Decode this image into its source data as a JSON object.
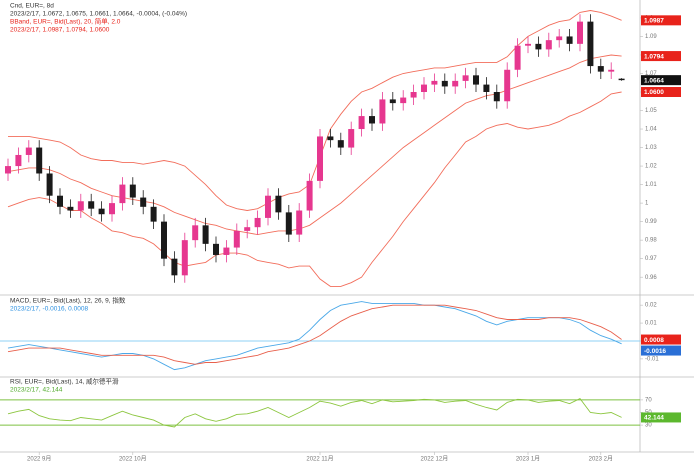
{
  "chart_data": [
    {
      "type": "candlestick",
      "title": "Cnd, EUR=, 8d",
      "subtitle": "2023/2/17, 1.0672, 1.0675, 1.0661, 1.0664, -0.0004, (-0.04%)",
      "up_color": "#e6378f",
      "down_color": "#1a1a1a",
      "open": [
        1.016,
        1.02,
        1.026,
        1.03,
        1.016,
        1.004,
        0.998,
        0.996,
        1.001,
        0.997,
        0.994,
        1.0,
        1.01,
        1.003,
        0.998,
        0.99,
        0.97,
        0.961,
        0.98,
        0.988,
        0.978,
        0.972,
        0.976,
        0.985,
        0.987,
        0.992,
        1.004,
        0.995,
        0.983,
        0.996,
        1.012,
        1.036,
        1.034,
        1.03,
        1.04,
        1.047,
        1.043,
        1.056,
        1.054,
        1.057,
        1.06,
        1.064,
        1.066,
        1.063,
        1.066,
        1.069,
        1.064,
        1.06,
        1.055,
        1.072,
        1.085,
        1.086,
        1.083,
        1.088,
        1.09,
        1.086,
        1.098,
        1.074,
        1.071,
        1.0672
      ],
      "high": [
        1.024,
        1.03,
        1.034,
        1.034,
        1.02,
        1.008,
        1.002,
        1.005,
        1.005,
        1.001,
        1.004,
        1.014,
        1.014,
        1.007,
        1.002,
        0.994,
        0.974,
        0.984,
        0.992,
        0.992,
        0.982,
        0.98,
        0.989,
        0.991,
        0.996,
        1.008,
        1.008,
        0.999,
        1.0,
        1.016,
        1.04,
        1.04,
        1.038,
        1.044,
        1.051,
        1.051,
        1.06,
        1.06,
        1.061,
        1.064,
        1.068,
        1.07,
        1.07,
        1.07,
        1.073,
        1.073,
        1.068,
        1.064,
        1.076,
        1.089,
        1.09,
        1.09,
        1.092,
        1.094,
        1.094,
        1.102,
        1.102,
        1.078,
        1.076,
        1.0675
      ],
      "low": [
        1.012,
        1.016,
        1.022,
        1.012,
        1.0,
        0.994,
        0.992,
        0.992,
        0.993,
        0.99,
        0.99,
        0.996,
        0.999,
        0.994,
        0.986,
        0.966,
        0.957,
        0.957,
        0.976,
        0.974,
        0.968,
        0.968,
        0.972,
        0.981,
        0.983,
        0.988,
        0.991,
        0.979,
        0.979,
        0.992,
        1.008,
        1.03,
        1.026,
        1.026,
        1.036,
        1.039,
        1.039,
        1.05,
        1.05,
        1.053,
        1.056,
        1.06,
        1.059,
        1.059,
        1.062,
        1.06,
        1.056,
        1.051,
        1.051,
        1.068,
        1.081,
        1.079,
        1.079,
        1.084,
        1.082,
        1.082,
        1.07,
        1.067,
        1.067,
        1.0661
      ],
      "close": [
        1.02,
        1.026,
        1.03,
        1.016,
        1.004,
        0.998,
        0.996,
        1.001,
        0.997,
        0.994,
        1.0,
        1.01,
        1.003,
        0.998,
        0.99,
        0.97,
        0.961,
        0.98,
        0.988,
        0.978,
        0.972,
        0.976,
        0.985,
        0.987,
        0.992,
        1.004,
        0.995,
        0.983,
        0.996,
        1.012,
        1.036,
        1.034,
        1.03,
        1.04,
        1.047,
        1.043,
        1.056,
        1.054,
        1.057,
        1.06,
        1.064,
        1.066,
        1.063,
        1.066,
        1.069,
        1.064,
        1.06,
        1.055,
        1.072,
        1.085,
        1.086,
        1.083,
        1.088,
        1.09,
        1.086,
        1.098,
        1.074,
        1.071,
        1.072,
        1.0664
      ],
      "overlay": {
        "name": "BBand, EUR=, Bid(Last), 20, 简单, 2.0",
        "readout": "2023/2/17, 1.0987, 1.0794, 1.0600",
        "color": "#f26d5b",
        "upper": [
          1.036,
          1.036,
          1.036,
          1.035,
          1.034,
          1.033,
          1.03,
          1.026,
          1.024,
          1.023,
          1.023,
          1.022,
          1.022,
          1.021,
          1.022,
          1.023,
          1.022,
          1.02,
          1.015,
          1.01,
          1.004,
          0.999,
          0.997,
          0.996,
          0.997,
          1.0,
          1.003,
          1.005,
          1.006,
          1.01,
          1.025,
          1.04,
          1.048,
          1.055,
          1.06,
          1.062,
          1.065,
          1.068,
          1.07,
          1.071,
          1.072,
          1.073,
          1.073,
          1.074,
          1.075,
          1.076,
          1.076,
          1.076,
          1.079,
          1.085,
          1.09,
          1.093,
          1.096,
          1.098,
          1.099,
          1.103,
          1.104,
          1.103,
          1.101,
          1.0987
        ],
        "middle": [
          1.017,
          1.018,
          1.019,
          1.019,
          1.018,
          1.016,
          1.013,
          1.011,
          1.008,
          1.006,
          1.004,
          1.003,
          1.002,
          1.001,
          1.0,
          0.998,
          0.995,
          0.993,
          0.991,
          0.989,
          0.988,
          0.986,
          0.985,
          0.984,
          0.983,
          0.984,
          0.985,
          0.985,
          0.986,
          0.988,
          0.992,
          0.996,
          1.0,
          1.005,
          1.01,
          1.015,
          1.02,
          1.025,
          1.03,
          1.034,
          1.038,
          1.042,
          1.046,
          1.05,
          1.054,
          1.056,
          1.058,
          1.059,
          1.061,
          1.063,
          1.065,
          1.067,
          1.069,
          1.071,
          1.073,
          1.076,
          1.078,
          1.079,
          1.08,
          1.0794
        ],
        "lower": [
          0.998,
          1.0,
          1.002,
          1.003,
          1.002,
          0.999,
          0.996,
          0.996,
          0.992,
          0.989,
          0.985,
          0.984,
          0.982,
          0.981,
          0.978,
          0.973,
          0.968,
          0.966,
          0.967,
          0.968,
          0.972,
          0.973,
          0.973,
          0.972,
          0.969,
          0.968,
          0.967,
          0.965,
          0.966,
          0.966,
          0.959,
          0.955,
          0.955,
          0.957,
          0.96,
          0.968,
          0.975,
          0.982,
          0.99,
          0.997,
          1.004,
          1.011,
          1.019,
          1.026,
          1.033,
          1.036,
          1.04,
          1.042,
          1.043,
          1.041,
          1.04,
          1.041,
          1.042,
          1.044,
          1.047,
          1.049,
          1.052,
          1.055,
          1.059,
          1.06
        ]
      },
      "ylim": [
        0.952,
        1.1086
      ],
      "yticks": [
        0.96,
        0.97,
        0.98,
        0.99,
        1,
        1.01,
        1.02,
        1.03,
        1.04,
        1.05,
        1.06,
        1.07,
        1.08,
        1.09,
        1.1
      ],
      "xticks": [
        {
          "value": 3,
          "label": "2022 9月"
        },
        {
          "value": 12,
          "label": "2022 10月"
        },
        {
          "value": 30,
          "label": "2022 11月"
        },
        {
          "value": 41,
          "label": "2022 12月"
        },
        {
          "value": 50,
          "label": "2023 1月"
        },
        {
          "value": 57,
          "label": "2023 2月"
        }
      ],
      "tags": [
        {
          "value": 1.0987,
          "color": "#e8231b"
        },
        {
          "value": 1.0794,
          "color": "#e8231b"
        },
        {
          "value": 1.0664,
          "color": "#111111"
        },
        {
          "value": 1.06,
          "label": "1.0600",
          "color": "#e8231b"
        }
      ]
    },
    {
      "type": "line",
      "title": "MACD, EUR=, Bid(Last), 12, 26, 9, 指数",
      "subtitle": "2023/2/17, -0.0016, 0.0008",
      "series": [
        {
          "color": "#4aa8e8",
          "values": [
            -0.004,
            -0.003,
            -0.002,
            -0.003,
            -0.004,
            -0.005,
            -0.006,
            -0.007,
            -0.008,
            -0.009,
            -0.008,
            -0.007,
            -0.007,
            -0.008,
            -0.01,
            -0.013,
            -0.016,
            -0.015,
            -0.013,
            -0.011,
            -0.01,
            -0.009,
            -0.008,
            -0.006,
            -0.004,
            -0.003,
            -0.002,
            -0.001,
            0.001,
            0.006,
            0.012,
            0.017,
            0.02,
            0.021,
            0.022,
            0.021,
            0.021,
            0.021,
            0.021,
            0.021,
            0.02,
            0.02,
            0.019,
            0.018,
            0.016,
            0.014,
            0.011,
            0.009,
            0.011,
            0.012,
            0.013,
            0.013,
            0.013,
            0.013,
            0.012,
            0.01,
            0.006,
            0.003,
            0.001,
            -0.0016
          ]
        },
        {
          "color": "#e8604c",
          "values": [
            -0.006,
            -0.005,
            -0.004,
            -0.004,
            -0.004,
            -0.004,
            -0.005,
            -0.006,
            -0.007,
            -0.008,
            -0.008,
            -0.008,
            -0.008,
            -0.008,
            -0.008,
            -0.009,
            -0.011,
            -0.012,
            -0.013,
            -0.012,
            -0.012,
            -0.011,
            -0.01,
            -0.009,
            -0.008,
            -0.006,
            -0.005,
            -0.004,
            -0.002,
            0,
            0.003,
            0.007,
            0.011,
            0.014,
            0.016,
            0.018,
            0.019,
            0.02,
            0.02,
            0.02,
            0.02,
            0.02,
            0.02,
            0.019,
            0.018,
            0.017,
            0.015,
            0.013,
            0.012,
            0.012,
            0.012,
            0.012,
            0.013,
            0.013,
            0.013,
            0.012,
            0.01,
            0.008,
            0.005,
            0.0008
          ]
        }
      ],
      "ylim": [
        -0.019,
        0.024
      ],
      "yticks": [
        -0.01,
        0,
        0.01,
        0.02
      ],
      "levels": [
        0
      ],
      "level_color": "#8fd0f5",
      "tags": [
        {
          "value": 0.0008,
          "color": "#e8231b"
        },
        {
          "value": -0.0016,
          "color": "#2a6fd6"
        }
      ]
    },
    {
      "type": "line",
      "title": "RSI, EUR=, Bid(Last), 14, 威尔德平滑",
      "subtitle": "2023/2/17, 42.144",
      "series": [
        {
          "color": "#8cc63f",
          "values": [
            48,
            52,
            55,
            45,
            40,
            38,
            37,
            42,
            40,
            38,
            45,
            52,
            46,
            42,
            38,
            30,
            27,
            42,
            48,
            40,
            36,
            40,
            47,
            48,
            52,
            58,
            50,
            42,
            50,
            58,
            68,
            65,
            60,
            66,
            69,
            64,
            70,
            67,
            68,
            69,
            71,
            70,
            66,
            68,
            69,
            63,
            58,
            54,
            66,
            71,
            70,
            66,
            68,
            69,
            64,
            72,
            50,
            48,
            50,
            42.144
          ]
        }
      ],
      "ylim": [
        0,
        100
      ],
      "yticks": [
        30,
        50,
        70
      ],
      "levels": [
        30,
        70
      ],
      "level_color": "#7dc142",
      "tags": [
        {
          "value": 42.144,
          "color": "#5cb82e"
        }
      ]
    }
  ]
}
